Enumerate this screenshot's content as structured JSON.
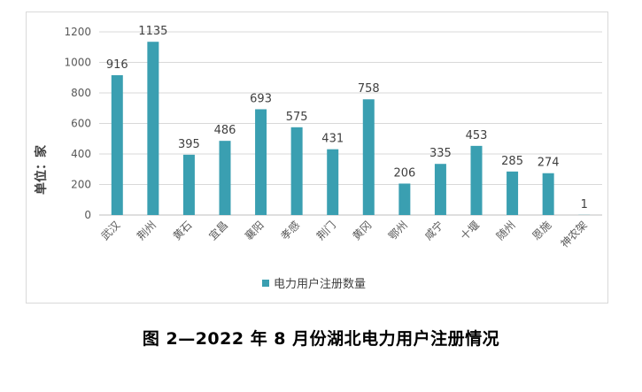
{
  "caption": "图 2—2022 年 8 月份湖北电力用户注册情况",
  "colors": {
    "bar": "#3a9fb1",
    "grid": "#d9d9d9",
    "axis": "#bfbfbf"
  },
  "chart_data": {
    "type": "bar",
    "title": "",
    "xlabel": "",
    "ylabel": "单位：家",
    "ylim": [
      0,
      1200
    ],
    "yticks": [
      0,
      200,
      400,
      600,
      800,
      1000,
      1200
    ],
    "grid": true,
    "legend_position": "bottom",
    "categories": [
      "武汉",
      "荆州",
      "黄石",
      "宜昌",
      "襄阳",
      "孝感",
      "荆门",
      "黄冈",
      "鄂州",
      "咸宁",
      "十堰",
      "随州",
      "恩施",
      "神农架"
    ],
    "series": [
      {
        "name": "电力用户注册数量",
        "values": [
          916,
          1135,
          395,
          486,
          693,
          575,
          431,
          758,
          206,
          335,
          453,
          285,
          274,
          1
        ]
      }
    ]
  }
}
